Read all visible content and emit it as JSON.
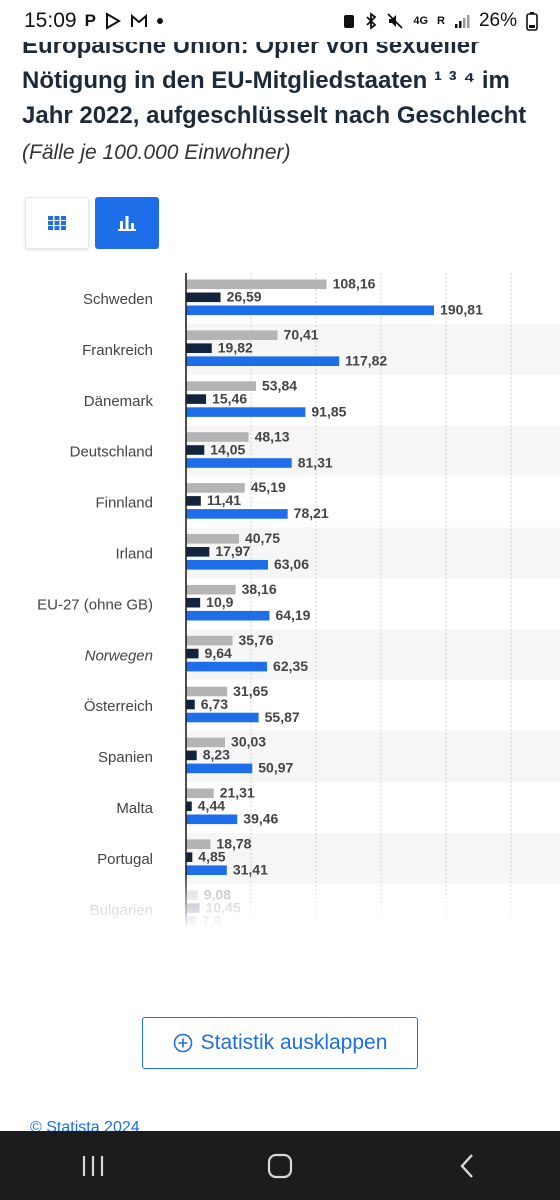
{
  "status_bar": {
    "time": "15:09",
    "notification_letter": "P",
    "network": "4G",
    "roaming": "R",
    "battery": "26%"
  },
  "header": {
    "title": "Europäische Union: Opfer von sexueller Nötigung in den EU-Mitgliedstaaten ¹ ³ ⁴ im Jahr 2022, aufgeschlüsselt nach Geschlecht",
    "subtitle": "(Fälle je 100.000 Einwohner)"
  },
  "view_toggle": {
    "table_icon": "grid-icon",
    "chart_icon": "bar-chart-icon",
    "active": "chart"
  },
  "chart_data": {
    "type": "bar",
    "orientation": "horizontal",
    "title": "",
    "xlabel": "",
    "ylabel": "",
    "grid": true,
    "xlim": [
      0,
      250
    ],
    "categories": [
      "Schweden",
      "Frankreich",
      "Dänemark",
      "Deutschland",
      "Finnland",
      "Irland",
      "EU-27 (ohne GB)",
      "Norwegen",
      "Österreich",
      "Spanien",
      "Malta",
      "Portugal",
      "Bulgarien"
    ],
    "italic_categories": [
      "Norwegen"
    ],
    "faded_categories": [
      "Bulgarien"
    ],
    "series": [
      {
        "color": "#b4b4b4",
        "values": [
          108.16,
          70.41,
          53.84,
          48.13,
          45.19,
          40.75,
          38.16,
          35.76,
          31.65,
          30.03,
          21.31,
          18.78,
          9.08
        ],
        "labels": [
          "108,16",
          "70,41",
          "53,84",
          "48,13",
          "45,19",
          "40,75",
          "38,16",
          "35,76",
          "31,65",
          "30,03",
          "21,31",
          "18,78",
          "9,08"
        ]
      },
      {
        "color": "#13253d",
        "values": [
          26.59,
          19.82,
          15.46,
          14.05,
          11.41,
          17.97,
          10.9,
          9.64,
          6.73,
          8.23,
          4.44,
          4.85,
          10.45
        ],
        "labels": [
          "26,59",
          "19,82",
          "15,46",
          "14,05",
          "11,41",
          "17,97",
          "10,9",
          "9,64",
          "6,73",
          "8,23",
          "4,44",
          "4,85",
          "10,45"
        ]
      },
      {
        "color": "#1d6ee8",
        "values": [
          190.81,
          117.82,
          91.85,
          81.31,
          78.21,
          63.06,
          64.19,
          62.35,
          55.87,
          50.97,
          39.46,
          31.41,
          7.8
        ],
        "labels": [
          "190,81",
          "117,82",
          "91,85",
          "81,31",
          "78,21",
          "63,06",
          "64,19",
          "62,35",
          "55,87",
          "50,97",
          "39,46",
          "31,41",
          "7,8"
        ]
      }
    ]
  },
  "expand_button": {
    "label": "Statistik ausklappen",
    "icon": "plus-circle-icon"
  },
  "footer": {
    "copyright": "© Statista 2024"
  },
  "nav_bar": {
    "recents_icon": "recents-icon",
    "home_icon": "home-icon",
    "back_icon": "back-icon"
  },
  "colors": {
    "accent": "#1d6ee8",
    "title": "#1d2a3a",
    "nav_background": "#1c1c1c"
  }
}
